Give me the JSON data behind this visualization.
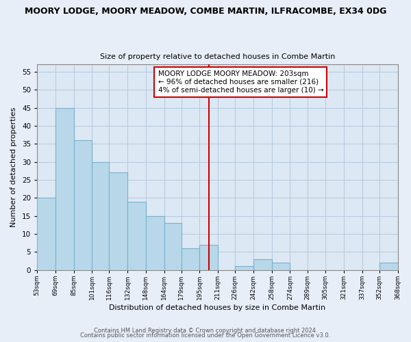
{
  "title": "MOORY LODGE, MOORY MEADOW, COMBE MARTIN, ILFRACOMBE, EX34 0DG",
  "subtitle": "Size of property relative to detached houses in Combe Martin",
  "xlabel": "Distribution of detached houses by size in Combe Martin",
  "ylabel": "Number of detached properties",
  "bin_edges": [
    53,
    69,
    85,
    101,
    116,
    132,
    148,
    164,
    179,
    195,
    211,
    226,
    242,
    258,
    274,
    289,
    305,
    321,
    337,
    352,
    368
  ],
  "bin_labels": [
    "53sqm",
    "69sqm",
    "85sqm",
    "101sqm",
    "116sqm",
    "132sqm",
    "148sqm",
    "164sqm",
    "179sqm",
    "195sqm",
    "211sqm",
    "226sqm",
    "242sqm",
    "258sqm",
    "274sqm",
    "289sqm",
    "305sqm",
    "321sqm",
    "337sqm",
    "352sqm",
    "368sqm"
  ],
  "counts": [
    20,
    45,
    36,
    30,
    27,
    19,
    15,
    13,
    6,
    7,
    0,
    1,
    3,
    2,
    0,
    0,
    0,
    0,
    0,
    2
  ],
  "bar_color": "#b8d8ea",
  "bar_edge_color": "#7ab0cc",
  "property_line_x": 203,
  "property_line_color": "#cc0000",
  "ylim": [
    0,
    57
  ],
  "yticks": [
    0,
    5,
    10,
    15,
    20,
    25,
    30,
    35,
    40,
    45,
    50,
    55
  ],
  "annotation_text": "MOORY LODGE MOORY MEADOW: 203sqm\n← 96% of detached houses are smaller (216)\n4% of semi-detached houses are larger (10) →",
  "annotation_box_color": "#cc0000",
  "footer1": "Contains HM Land Registry data © Crown copyright and database right 2024.",
  "footer2": "Contains public sector information licensed under the Open Government Licence v3.0.",
  "background_color": "#e8eef8",
  "plot_background_color": "#dce8f4",
  "grid_color": "#b8cce0"
}
